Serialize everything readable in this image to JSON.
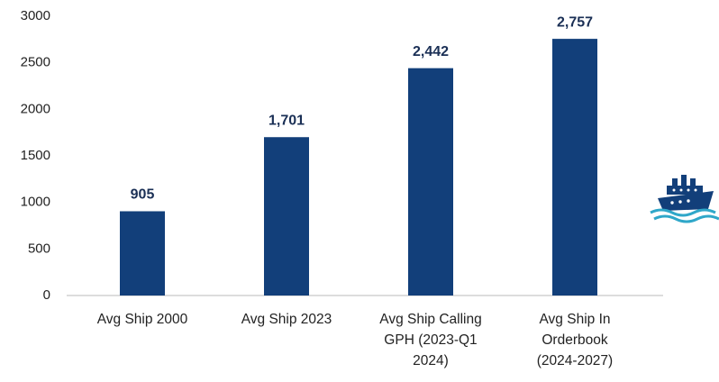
{
  "chart_data": {
    "type": "bar",
    "categories": [
      [
        "Avg Ship 2000"
      ],
      [
        "Avg Ship 2023"
      ],
      [
        "Avg Ship Calling",
        "GPH (2023-Q1",
        "2024)"
      ],
      [
        "Avg Ship In",
        "Orderbook",
        "(2024-2027)"
      ]
    ],
    "values": [
      905,
      1701,
      2442,
      2757
    ],
    "value_labels": [
      "905",
      "1,701",
      "2,442",
      "2,757"
    ],
    "color": "#123f7a",
    "ylim": [
      0,
      3000
    ],
    "yticks": [
      0,
      500,
      1000,
      1500,
      2000,
      2500,
      3000
    ],
    "grid": false
  }
}
